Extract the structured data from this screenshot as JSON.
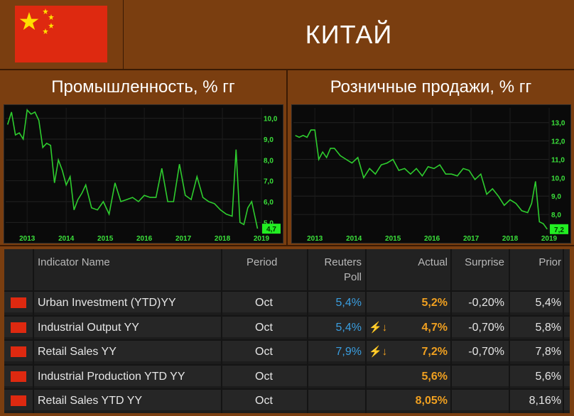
{
  "header": {
    "country": "КИТАЙ"
  },
  "charts": [
    {
      "title": "Промышленность, % гг",
      "x_ticks": [
        "2013",
        "2014",
        "2015",
        "2016",
        "2017",
        "2018",
        "2019"
      ],
      "y_ticks": [
        "10,0",
        "9,0",
        "8,0",
        "7,0",
        "6,0",
        "5,0"
      ],
      "last_value": "4,7",
      "line_color": "#2ecc2e"
    },
    {
      "title": "Розничные продажи, % гг",
      "x_ticks": [
        "2013",
        "2014",
        "2015",
        "2016",
        "2017",
        "2018",
        "2019"
      ],
      "y_ticks": [
        "13,0",
        "12,0",
        "11,0",
        "10,0",
        "9,0",
        "8,0"
      ],
      "last_value": "7,2",
      "line_color": "#2ecc2e"
    }
  ],
  "table": {
    "columns": {
      "name": "Indicator Name",
      "period": "Period",
      "poll_1": "Reuters",
      "poll_2": "Poll",
      "actual": "Actual",
      "surprise": "Surprise",
      "prior": "Prior"
    },
    "rows": [
      {
        "name": "Urban Investment (YTD)YY",
        "period": "Oct",
        "poll": "5,4%",
        "bolt": "",
        "actual": "5,2%",
        "surprise": "-0,20%",
        "prior": "5,4%"
      },
      {
        "name": "Industrial Output YY",
        "period": "Oct",
        "poll": "5,4%",
        "bolt": "⚡↓",
        "actual": "4,7%",
        "surprise": "-0,70%",
        "prior": "5,8%"
      },
      {
        "name": "Retail Sales YY",
        "period": "Oct",
        "poll": "7,9%",
        "bolt": "⚡↓",
        "actual": "7,2%",
        "surprise": "-0,70%",
        "prior": "7,8%"
      },
      {
        "name": "Industrial Production YTD YY",
        "period": "Oct",
        "poll": "",
        "bolt": "",
        "actual": "5,6%",
        "surprise": "",
        "prior": "5,6%"
      },
      {
        "name": "Retail Sales YTD YY",
        "period": "Oct",
        "poll": "",
        "bolt": "",
        "actual": "8,05%",
        "surprise": "",
        "prior": "8,16%"
      }
    ]
  },
  "chart_data": [
    {
      "type": "line",
      "title": "Промышленность, % гг",
      "ylim": [
        4.5,
        10.5
      ],
      "x": [
        2013.0,
        2013.1,
        2013.2,
        2013.3,
        2013.4,
        2013.5,
        2013.6,
        2013.7,
        2013.8,
        2013.9,
        2014.0,
        2014.1,
        2014.2,
        2014.3,
        2014.4,
        2014.5,
        2014.6,
        2014.7,
        2014.8,
        2014.9,
        2015.0,
        2015.15,
        2015.3,
        2015.45,
        2015.6,
        2015.75,
        2015.9,
        2016.05,
        2016.2,
        2016.35,
        2016.5,
        2016.65,
        2016.8,
        2016.95,
        2017.1,
        2017.25,
        2017.4,
        2017.55,
        2017.7,
        2017.85,
        2018.0,
        2018.15,
        2018.3,
        2018.45,
        2018.6,
        2018.75,
        2018.85,
        2018.95,
        2019.05,
        2019.15,
        2019.25,
        2019.4
      ],
      "series": [
        {
          "values": [
            9.7,
            10.3,
            9.2,
            9.3,
            9.0,
            10.4,
            10.2,
            10.3,
            9.9,
            8.6,
            8.8,
            8.7,
            6.9,
            8.0,
            7.5,
            6.8,
            7.2,
            5.6,
            6.1,
            6.4,
            6.8,
            5.7,
            5.6,
            6.0,
            5.4,
            6.9,
            6.0,
            6.1,
            6.2,
            6.0,
            6.3,
            6.2,
            6.2,
            7.6,
            6.0,
            6.0,
            7.8,
            6.3,
            6.1,
            7.2,
            6.2,
            6.0,
            5.9,
            5.6,
            5.4,
            5.3,
            8.5,
            5.0,
            4.9,
            5.7,
            6.0,
            4.7
          ]
        }
      ]
    },
    {
      "type": "line",
      "title": "Розничные продажи, % гг",
      "ylim": [
        7.0,
        13.8
      ],
      "x": [
        2013.0,
        2013.1,
        2013.2,
        2013.3,
        2013.4,
        2013.5,
        2013.6,
        2013.7,
        2013.8,
        2013.9,
        2014.0,
        2014.15,
        2014.3,
        2014.45,
        2014.6,
        2014.75,
        2014.9,
        2015.05,
        2015.2,
        2015.35,
        2015.5,
        2015.65,
        2015.8,
        2015.95,
        2016.1,
        2016.25,
        2016.4,
        2016.55,
        2016.7,
        2016.85,
        2017.0,
        2017.15,
        2017.3,
        2017.45,
        2017.6,
        2017.75,
        2017.9,
        2018.05,
        2018.2,
        2018.35,
        2018.5,
        2018.65,
        2018.8,
        2018.95,
        2019.05,
        2019.15,
        2019.25,
        2019.35,
        2019.45
      ],
      "series": [
        {
          "values": [
            12.3,
            12.2,
            12.3,
            12.2,
            12.6,
            12.6,
            11.0,
            11.4,
            11.1,
            11.6,
            11.6,
            11.2,
            11.0,
            10.8,
            11.1,
            10.0,
            10.5,
            10.2,
            10.7,
            10.8,
            11.0,
            10.4,
            10.5,
            10.2,
            10.5,
            10.1,
            10.6,
            10.5,
            10.7,
            10.2,
            10.2,
            10.1,
            10.5,
            10.4,
            9.9,
            10.2,
            9.1,
            9.4,
            9.0,
            8.5,
            8.8,
            8.6,
            8.2,
            8.1,
            8.6,
            9.8,
            7.6,
            7.5,
            7.2
          ]
        }
      ]
    }
  ]
}
